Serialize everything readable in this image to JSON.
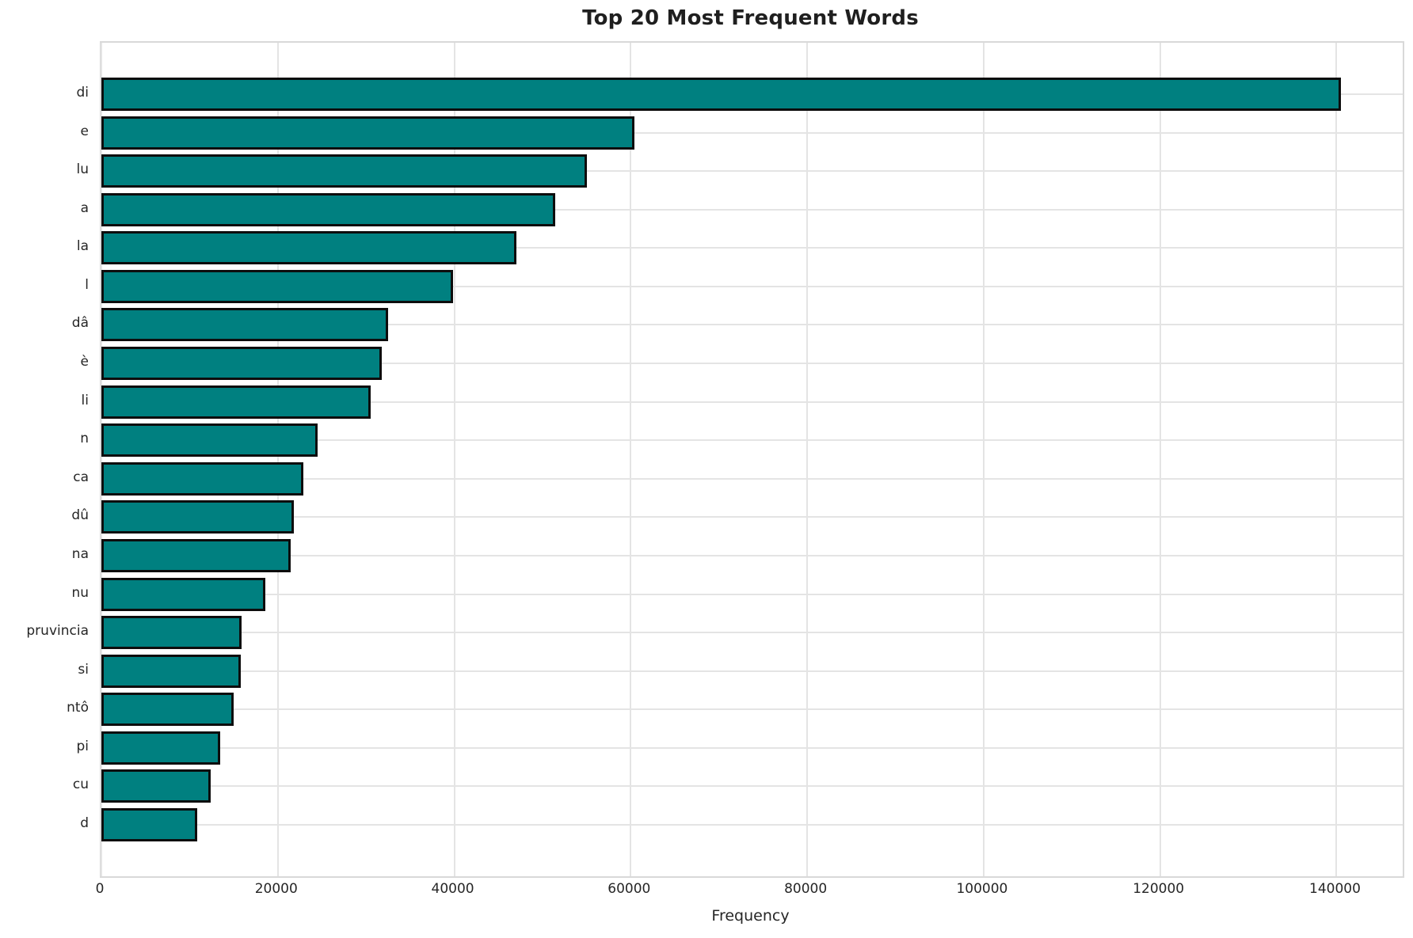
{
  "title": "Top 20 Most Frequent Words",
  "chart_data": {
    "type": "bar",
    "orientation": "horizontal",
    "title": "Top 20 Most Frequent Words",
    "xlabel": "Frequency",
    "ylabel": "",
    "categories": [
      "di",
      "e",
      "lu",
      "a",
      "la",
      "l",
      "dâ",
      "è",
      "li",
      "n",
      "ca",
      "dû",
      "na",
      "nu",
      "pruvincia",
      "si",
      "ntô",
      "pi",
      "cu",
      "d"
    ],
    "values": [
      140500,
      60400,
      55000,
      51400,
      47000,
      39900,
      32500,
      31800,
      30500,
      24500,
      22900,
      21800,
      21500,
      18600,
      15900,
      15800,
      15000,
      13500,
      12400,
      10900
    ],
    "x_ticks": [
      0,
      20000,
      40000,
      60000,
      80000,
      100000,
      120000,
      140000
    ],
    "x_tick_labels": [
      "0",
      "20000",
      "40000",
      "60000",
      "80000",
      "100000",
      "120000",
      "140000"
    ],
    "xlim": [
      0,
      147500
    ],
    "grid": true,
    "legend": "none",
    "bar_color": "#008080",
    "bar_edge_color": "#0d0d0d",
    "grid_color": "#e4e4e4",
    "text_color": "#262626"
  }
}
